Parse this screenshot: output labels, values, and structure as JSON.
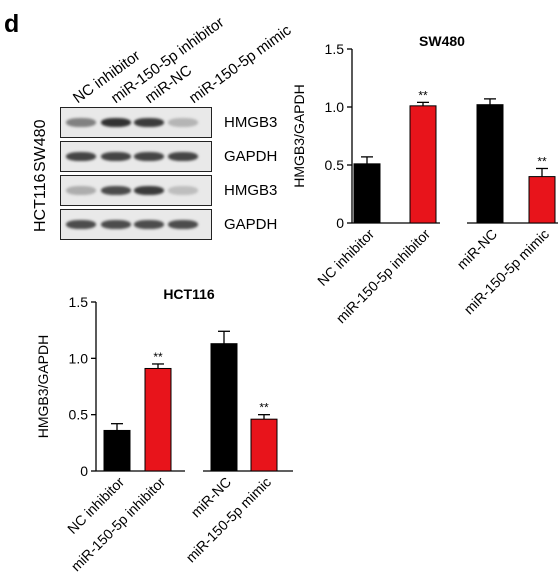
{
  "panel_label": "d",
  "western_blot": {
    "lanes": [
      "NC inhibitor",
      "miR-150-5p inhibitor",
      "miR-NC",
      "miR-150-5p mimic"
    ],
    "cell_lines": [
      "SW480",
      "HCT116"
    ],
    "rows": [
      {
        "protein": "HMGB3",
        "cell_line": "SW480",
        "intensities": [
          0.55,
          1.0,
          0.95,
          0.25
        ]
      },
      {
        "protein": "GAPDH",
        "cell_line": "SW480",
        "intensities": [
          0.9,
          0.9,
          0.9,
          0.9
        ]
      },
      {
        "protein": "HMGB3",
        "cell_line": "HCT116",
        "intensities": [
          0.3,
          0.85,
          0.95,
          0.2
        ]
      },
      {
        "protein": "GAPDH",
        "cell_line": "HCT116",
        "intensities": [
          0.85,
          0.85,
          0.85,
          0.85
        ]
      }
    ]
  },
  "chart_data": [
    {
      "type": "bar",
      "title": "SW480",
      "ylabel": "HMGB3/GAPDH",
      "xlabel": "",
      "ylim": [
        0,
        1.5
      ],
      "yticks": [
        "0",
        "0.5",
        "1.0",
        "1.5"
      ],
      "ytick_values": [
        0,
        0.5,
        1.0,
        1.5
      ],
      "categories": [
        "NC inhibitor",
        "miR-150-5p inhibitor",
        "miR-NC",
        "miR-150-5p mimic"
      ],
      "values": [
        0.51,
        1.01,
        1.02,
        0.4
      ],
      "errors": [
        0.06,
        0.03,
        0.05,
        0.07
      ],
      "colors": [
        "#000000",
        "#e8141b",
        "#000000",
        "#e8141b"
      ],
      "annotations": [
        "",
        "**",
        "",
        "**"
      ]
    },
    {
      "type": "bar",
      "title": "HCT116",
      "ylabel": "HMGB3/GAPDH",
      "xlabel": "",
      "ylim": [
        0,
        1.5
      ],
      "yticks": [
        "0",
        "0.5",
        "1.0",
        "1.5"
      ],
      "ytick_values": [
        0,
        0.5,
        1.0,
        1.5
      ],
      "categories": [
        "NC inhibitor",
        "miR-150-5p inhibitor",
        "miR-NC",
        "miR-150-5p mimic"
      ],
      "values": [
        0.36,
        0.91,
        1.13,
        0.46
      ],
      "errors": [
        0.06,
        0.04,
        0.11,
        0.04
      ],
      "colors": [
        "#000000",
        "#e8141b",
        "#000000",
        "#e8141b"
      ],
      "annotations": [
        "",
        "**",
        "",
        "**"
      ]
    }
  ]
}
